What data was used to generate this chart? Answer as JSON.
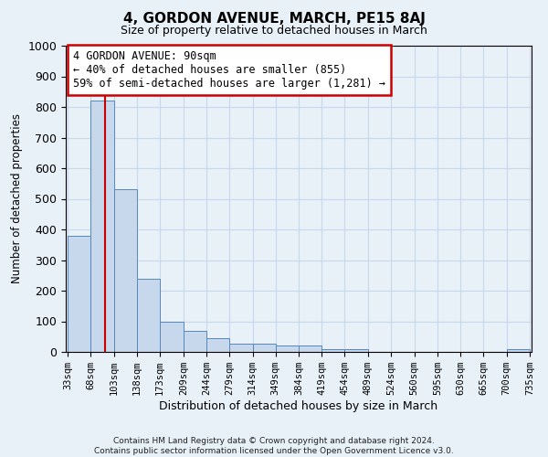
{
  "title": "4, GORDON AVENUE, MARCH, PE15 8AJ",
  "subtitle": "Size of property relative to detached houses in March",
  "xlabel": "Distribution of detached houses by size in March",
  "ylabel": "Number of detached properties",
  "bin_edges": [
    33,
    68,
    103,
    138,
    173,
    209,
    244,
    279,
    314,
    349,
    384,
    419,
    454,
    489,
    524,
    560,
    595,
    630,
    665,
    700,
    735
  ],
  "bar_heights": [
    380,
    820,
    530,
    240,
    100,
    70,
    45,
    28,
    28,
    22,
    22,
    10,
    10,
    0,
    0,
    0,
    0,
    0,
    0,
    8
  ],
  "bar_color": "#c8d8ec",
  "bar_edgecolor": "#5588bb",
  "grid_color": "#c8d8ec",
  "property_line_x": 90,
  "property_line_color": "#cc0000",
  "ylim": [
    0,
    1000
  ],
  "yticks": [
    0,
    100,
    200,
    300,
    400,
    500,
    600,
    700,
    800,
    900,
    1000
  ],
  "annotation_text": "4 GORDON AVENUE: 90sqm\n← 40% of detached houses are smaller (855)\n59% of semi-detached houses are larger (1,281) →",
  "footnote": "Contains HM Land Registry data © Crown copyright and database right 2024.\nContains public sector information licensed under the Open Government Licence v3.0.",
  "bg_color": "#e8f0f8",
  "plot_bg_color": "#e8f0f8"
}
